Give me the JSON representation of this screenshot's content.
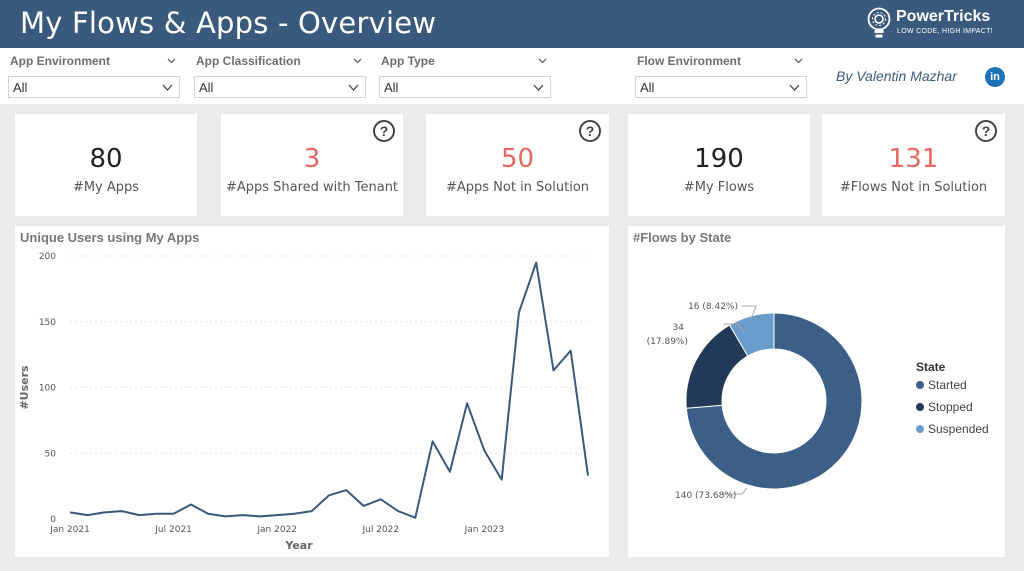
{
  "header": {
    "title": "My Flows & Apps - Overview",
    "logo_name": "PowerTricks",
    "logo_tagline": "LOW CODE, HIGH IMPACT!"
  },
  "filters": [
    {
      "label": "App Environment",
      "value": "All"
    },
    {
      "label": "App Classification",
      "value": "All"
    },
    {
      "label": "App Type",
      "value": "All"
    },
    {
      "label": "Flow Environment",
      "value": "All"
    }
  ],
  "author": "By Valentin Mazhar",
  "linkedin_label": "in",
  "kpis": [
    {
      "value": "80",
      "label": "#My Apps",
      "color": "#222222",
      "help": false
    },
    {
      "value": "3",
      "label": "#Apps Shared with Tenant",
      "color": "#e8685f",
      "help": true
    },
    {
      "value": "50",
      "label": "#Apps Not in Solution",
      "color": "#e8685f",
      "help": true
    },
    {
      "value": "190",
      "label": "#My Flows",
      "color": "#222222",
      "help": false
    },
    {
      "value": "131",
      "label": "#Flows Not in Solution",
      "color": "#e8685f",
      "help": true
    }
  ],
  "help_symbol": "?",
  "colors": {
    "header": "#3a5a7d",
    "line": "#3a5a7d",
    "started": "#3b5f86",
    "stopped": "#223a57",
    "suspended": "#6a9ccb",
    "alert": "#e8685f"
  },
  "chart_data": [
    {
      "type": "line",
      "title": "Unique Users using My Apps",
      "xlabel": "Year",
      "ylabel": "#Users",
      "ylim": [
        0,
        200
      ],
      "yticks": [
        0,
        50,
        100,
        150,
        200
      ],
      "xtick_labels": [
        "Jan 2021",
        "Jul 2021",
        "Jan 2022",
        "Jul 2022",
        "Jan 2023"
      ],
      "x_start": "Jan 2021",
      "series": [
        {
          "values": [
            5,
            3,
            5,
            6,
            3,
            4,
            4,
            11,
            4,
            2,
            3,
            2,
            3,
            4,
            6,
            18,
            22,
            10,
            15,
            6,
            1,
            59,
            36,
            88,
            52,
            30,
            157,
            195,
            113,
            128,
            33
          ]
        }
      ]
    },
    {
      "type": "pie",
      "title": "#Flows by State",
      "legend_title": "State",
      "legend_position": "right",
      "slices": [
        {
          "name": "Started",
          "value": 140,
          "label": "140 (73.68%)"
        },
        {
          "name": "Stopped",
          "value": 34,
          "label_line1": "34",
          "label_line2": "(17.89%)"
        },
        {
          "name": "Suspended",
          "value": 16,
          "label": "16 (8.42%)"
        }
      ]
    }
  ]
}
